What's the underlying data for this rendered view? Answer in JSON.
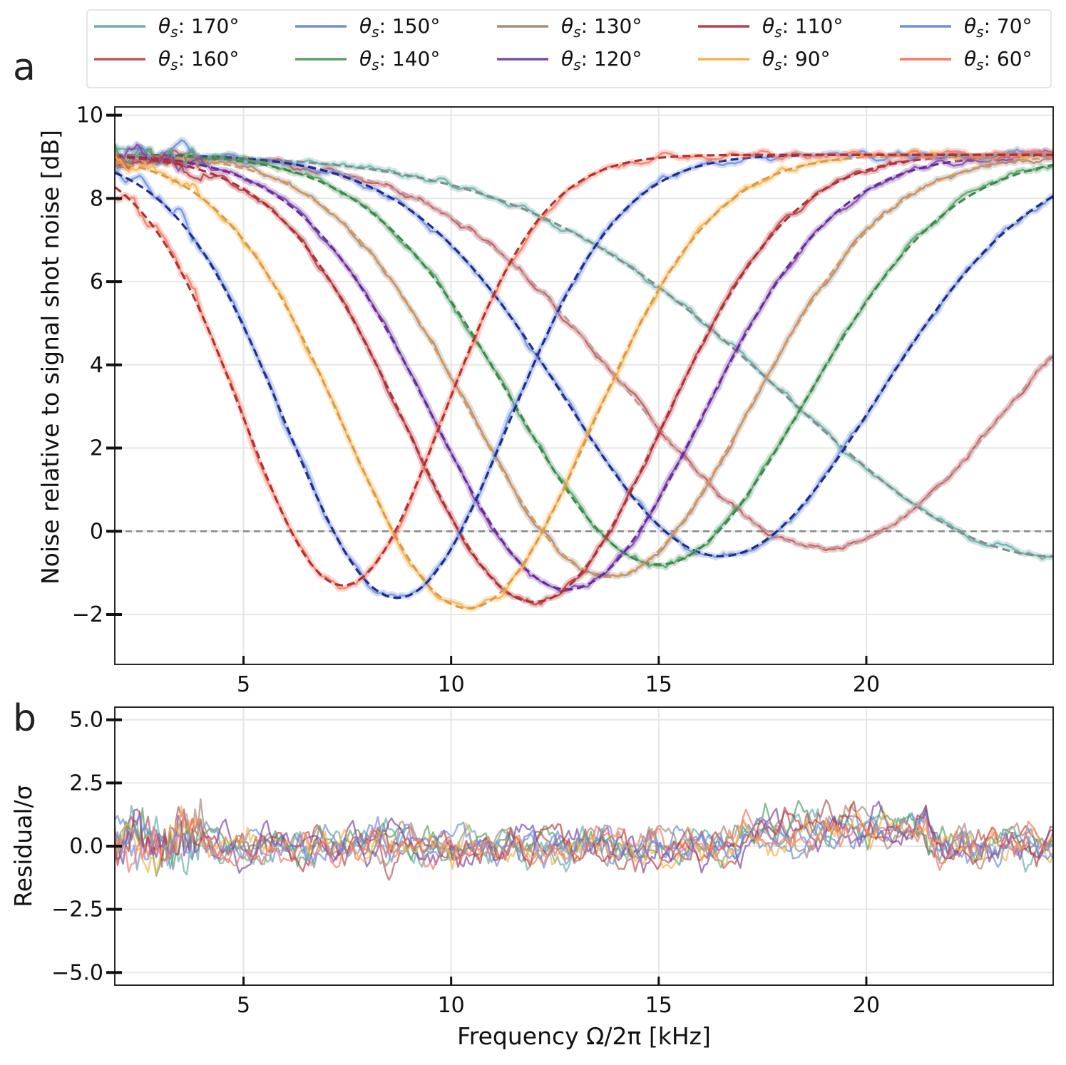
{
  "chart_data": [
    {
      "panel_label": "a",
      "type": "line",
      "xlabel": "",
      "ylabel": "Noise relative to signal shot noise [dB]",
      "xlim": [
        1.9,
        24.5
      ],
      "ylim": [
        -3.2,
        10.2
      ],
      "xticks": [
        5,
        10,
        15,
        20
      ],
      "yticks": [
        -2,
        0,
        2,
        4,
        6,
        8,
        10
      ],
      "ytick_labels": [
        "−2",
        "0",
        "2",
        "4",
        "6",
        "8",
        "10"
      ],
      "grid": true,
      "reference_line": {
        "y": 0,
        "style": "dashed",
        "color": "#888888"
      },
      "legend_position": "top",
      "series": [
        {
          "name": "θs: 170°",
          "data_color": "#6aaea8",
          "fit_color": "#7f8f8a",
          "min_x": 24.5,
          "min_y": -0.6,
          "high": 9.05,
          "width": 9.5
        },
        {
          "name": "θs: 160°",
          "data_color": "#b8575a",
          "fit_color": "#c79a9a",
          "min_x": 19.0,
          "min_y": -0.4,
          "high": 9.05,
          "width": 7.0
        },
        {
          "name": "θs: 150°",
          "data_color": "#6d8fd8",
          "fit_color": "#1f2a8a",
          "min_x": 16.5,
          "min_y": -0.6,
          "high": 9.05,
          "width": 5.6
        },
        {
          "name": "θs: 140°",
          "data_color": "#5aa06a",
          "fit_color": "#3a8a4a",
          "min_x": 15.0,
          "min_y": -0.8,
          "high": 9.05,
          "width": 5.2
        },
        {
          "name": "θs: 130°",
          "data_color": "#a88a7a",
          "fit_color": "#d99a55",
          "min_x": 13.8,
          "min_y": -1.1,
          "high": 9.05,
          "width": 5.0
        },
        {
          "name": "θs: 120°",
          "data_color": "#7d4aa8",
          "fit_color": "#6a2a9a",
          "min_x": 12.8,
          "min_y": -1.4,
          "high": 9.05,
          "width": 4.8
        },
        {
          "name": "θs: 110°",
          "data_color": "#b84046",
          "fit_color": "#b03030",
          "min_x": 12.0,
          "min_y": -1.7,
          "high": 9.05,
          "width": 4.6
        },
        {
          "name": "θs: 90°",
          "data_color": "#f5b24a",
          "fit_color": "#d99a4a",
          "min_x": 10.4,
          "min_y": -1.85,
          "high": 9.05,
          "width": 4.4
        },
        {
          "name": "θs: 70°",
          "data_color": "#6d8fe0",
          "fit_color": "#1f2a8a",
          "min_x": 8.7,
          "min_y": -1.6,
          "high": 9.05,
          "width": 4.0
        },
        {
          "name": "θs: 60°",
          "data_color": "#f57a65",
          "fit_color": "#b03030",
          "min_x": 7.4,
          "min_y": -1.3,
          "high": 9.05,
          "width": 3.6
        }
      ]
    },
    {
      "panel_label": "b",
      "type": "line",
      "xlabel": "Frequency Ω/2π [kHz]",
      "ylabel": "Residual/σ",
      "xlim": [
        1.9,
        24.5
      ],
      "ylim": [
        -5.5,
        5.5
      ],
      "xticks": [
        5,
        10,
        15,
        20
      ],
      "yticks": [
        -5.0,
        -2.5,
        0.0,
        2.5,
        5.0
      ],
      "ytick_labels": [
        "−5.0",
        "−2.5",
        "0.0",
        "2.5",
        "5.0"
      ],
      "grid": true,
      "series_note": "residuals for each of the ten series, same colors as panel a"
    }
  ],
  "legend": {
    "entries": [
      {
        "label": "θs: 170°",
        "sym": "θ",
        "sub": "s",
        "value": ": 170°",
        "color": "#6aaea8"
      },
      {
        "label": "θs: 160°",
        "sym": "θ",
        "sub": "s",
        "value": ": 160°",
        "color": "#b8575a"
      },
      {
        "label": "θs: 150°",
        "sym": "θ",
        "sub": "s",
        "value": ": 150°",
        "color": "#6d8fd8"
      },
      {
        "label": "θs: 140°",
        "sym": "θ",
        "sub": "s",
        "value": ": 140°",
        "color": "#5aa06a"
      },
      {
        "label": "θs: 130°",
        "sym": "θ",
        "sub": "s",
        "value": ": 130°",
        "color": "#a88a7a"
      },
      {
        "label": "θs: 120°",
        "sym": "θ",
        "sub": "s",
        "value": ": 120°",
        "color": "#7d4aa8"
      },
      {
        "label": "θs: 110°",
        "sym": "θ",
        "sub": "s",
        "value": ": 110°",
        "color": "#b84046"
      },
      {
        "label": "θs: 90°",
        "sym": "θ",
        "sub": "s",
        "value": ": 90°",
        "color": "#f5b24a"
      },
      {
        "label": "θs: 70°",
        "sym": "θ",
        "sub": "s",
        "value": ": 70°",
        "color": "#6d8fe0"
      },
      {
        "label": "θs: 60°",
        "sym": "θ",
        "sub": "s",
        "value": ": 60°",
        "color": "#f57a65"
      }
    ]
  }
}
